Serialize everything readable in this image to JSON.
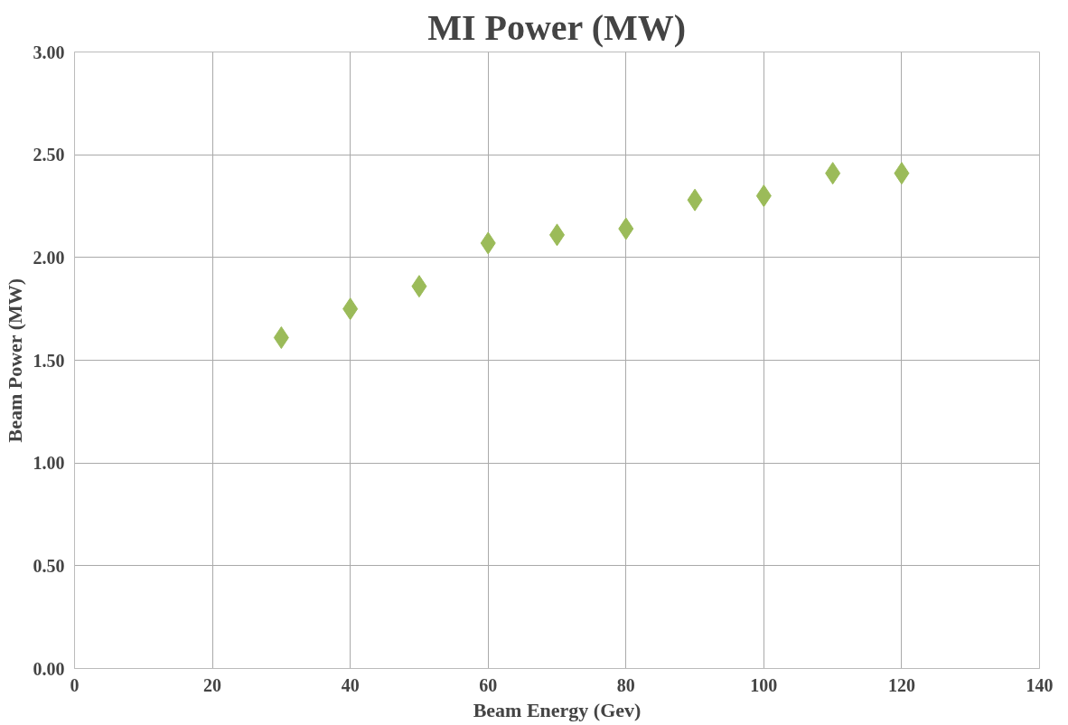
{
  "chart_data": {
    "type": "scatter",
    "title": "MI Power (MW)",
    "xlabel": "Beam Energy (Gev)",
    "ylabel": "Beam Power (MW)",
    "x": [
      30,
      40,
      50,
      60,
      70,
      80,
      90,
      100,
      110,
      120
    ],
    "series": [
      {
        "color": "#9bbb59",
        "values": [
          1.61,
          1.75,
          1.86,
          2.07,
          2.11,
          2.14,
          2.28,
          2.3,
          2.41,
          2.41
        ]
      }
    ],
    "xlim": [
      0,
      140
    ],
    "xticks": [
      0,
      20,
      40,
      60,
      80,
      100,
      120,
      140
    ],
    "ylim": [
      0,
      3
    ],
    "yticks": [
      {
        "value": 0,
        "label": "0.00"
      },
      {
        "value": 0.5,
        "label": "0.50"
      },
      {
        "value": 1,
        "label": "1.00"
      },
      {
        "value": 1.5,
        "label": "1.50"
      },
      {
        "value": 2,
        "label": "2.00"
      },
      {
        "value": 2.5,
        "label": "2.50"
      },
      {
        "value": 3,
        "label": "3.00"
      }
    ],
    "grid": true,
    "marker": "diamond"
  }
}
